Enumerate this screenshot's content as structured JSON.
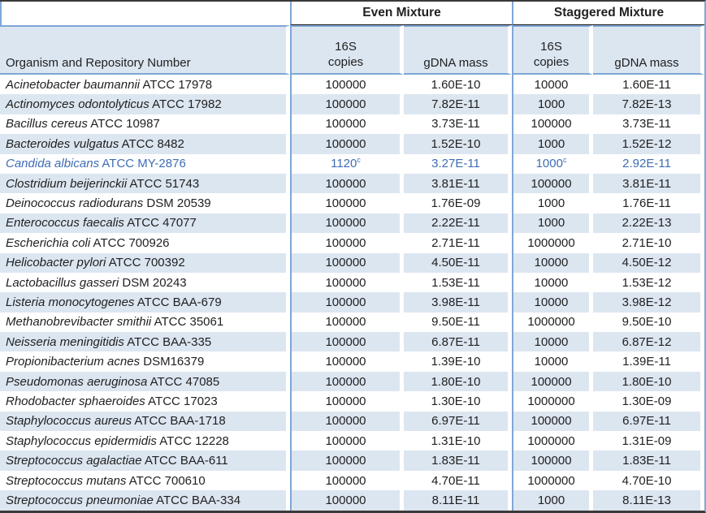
{
  "table": {
    "columns": {
      "organism": "Organism and Repository Number",
      "copies_line1": "16S",
      "copies_line2": "copies",
      "mass": "gDNA mass"
    },
    "groups": [
      "Even Mixture",
      "Staggered Mixture"
    ],
    "rows": [
      {
        "species": "Acinetobacter baumannii",
        "repo": "ATCC 17978",
        "even_copies": "100000",
        "even_mass": "1.60E-10",
        "stag_copies": "10000",
        "stag_mass": "1.60E-11"
      },
      {
        "species": "Actinomyces odontolyticus",
        "repo": "ATCC 17982",
        "even_copies": "100000",
        "even_mass": "7.82E-11",
        "stag_copies": "1000",
        "stag_mass": "7.82E-13"
      },
      {
        "species": "Bacillus cereus",
        "repo": "ATCC 10987",
        "even_copies": "100000",
        "even_mass": "3.73E-11",
        "stag_copies": "100000",
        "stag_mass": "3.73E-11"
      },
      {
        "species": "Bacteroides vulgatus",
        "repo": "ATCC 8482",
        "even_copies": "100000",
        "even_mass": "1.52E-10",
        "stag_copies": "1000",
        "stag_mass": "1.52E-12"
      },
      {
        "species": "Candida albicans",
        "repo": "ATCC MY-2876",
        "even_copies": "1120",
        "even_copies_sup": "c",
        "even_mass": "3.27E-11",
        "stag_copies": "1000",
        "stag_copies_sup": "c",
        "stag_mass": "2.92E-11",
        "highlight": true
      },
      {
        "species": "Clostridium beijerinckii",
        "repo": "ATCC 51743",
        "even_copies": "100000",
        "even_mass": "3.81E-11",
        "stag_copies": "100000",
        "stag_mass": "3.81E-11"
      },
      {
        "species": "Deinococcus radiodurans",
        "repo": "DSM 20539",
        "even_copies": "100000",
        "even_mass": "1.76E-09",
        "stag_copies": "1000",
        "stag_mass": "1.76E-11"
      },
      {
        "species": "Enterococcus faecalis",
        "repo": "ATCC 47077",
        "even_copies": "100000",
        "even_mass": "2.22E-11",
        "stag_copies": "1000",
        "stag_mass": "2.22E-13"
      },
      {
        "species": "Escherichia coli",
        "repo": "ATCC 700926",
        "even_copies": "100000",
        "even_mass": "2.71E-11",
        "stag_copies": "1000000",
        "stag_mass": "2.71E-10"
      },
      {
        "species": "Helicobacter pylori",
        "repo": "ATCC 700392",
        "even_copies": "100000",
        "even_mass": "4.50E-11",
        "stag_copies": "10000",
        "stag_mass": "4.50E-12"
      },
      {
        "species": "Lactobacillus gasseri",
        "repo": "DSM 20243",
        "even_copies": "100000",
        "even_mass": "1.53E-11",
        "stag_copies": "10000",
        "stag_mass": "1.53E-12"
      },
      {
        "species": "Listeria monocytogenes",
        "repo": "ATCC BAA-679",
        "even_copies": "100000",
        "even_mass": "3.98E-11",
        "stag_copies": "10000",
        "stag_mass": "3.98E-12"
      },
      {
        "species": "Methanobrevibacter smithii",
        "repo": "ATCC 35061",
        "even_copies": "100000",
        "even_mass": "9.50E-11",
        "stag_copies": "1000000",
        "stag_mass": "9.50E-10"
      },
      {
        "species": "Neisseria meningitidis",
        "repo": "ATCC BAA-335",
        "even_copies": "100000",
        "even_mass": "6.87E-11",
        "stag_copies": "10000",
        "stag_mass": "6.87E-12"
      },
      {
        "species": "Propionibacterium acnes",
        "repo": "DSM16379",
        "even_copies": "100000",
        "even_mass": "1.39E-10",
        "stag_copies": "10000",
        "stag_mass": "1.39E-11"
      },
      {
        "species": "Pseudomonas aeruginosa",
        "repo": "ATCC 47085",
        "even_copies": "100000",
        "even_mass": "1.80E-10",
        "stag_copies": "100000",
        "stag_mass": "1.80E-10"
      },
      {
        "species": "Rhodobacter sphaeroides",
        "repo": "ATCC 17023",
        "even_copies": "100000",
        "even_mass": "1.30E-10",
        "stag_copies": "1000000",
        "stag_mass": "1.30E-09"
      },
      {
        "species": "Staphylococcus aureus",
        "repo": "ATCC BAA-1718",
        "even_copies": "100000",
        "even_mass": "6.97E-11",
        "stag_copies": "100000",
        "stag_mass": "6.97E-11"
      },
      {
        "species": "Staphylococcus epidermidis",
        "repo": "ATCC 12228",
        "even_copies": "100000",
        "even_mass": "1.31E-10",
        "stag_copies": "1000000",
        "stag_mass": "1.31E-09"
      },
      {
        "species": "Streptococcus agalactiae",
        "repo": "ATCC BAA-611",
        "even_copies": "100000",
        "even_mass": "1.83E-11",
        "stag_copies": "100000",
        "stag_mass": "1.83E-11"
      },
      {
        "species": "Streptococcus mutans",
        "repo": "ATCC 700610",
        "even_copies": "100000",
        "even_mass": "4.70E-11",
        "stag_copies": "1000000",
        "stag_mass": "4.70E-10"
      },
      {
        "species": "Streptococcus pneumoniae",
        "repo": "ATCC BAA-334",
        "even_copies": "100000",
        "even_mass": "8.11E-11",
        "stag_copies": "1000",
        "stag_mass": "8.11E-13"
      }
    ]
  },
  "colors": {
    "band": "#DCE6F1",
    "grid_blue": "#7FA7D6",
    "frame_dark": "#3A3A3A",
    "hl": "#3E6DB5",
    "txt": "#212121"
  }
}
